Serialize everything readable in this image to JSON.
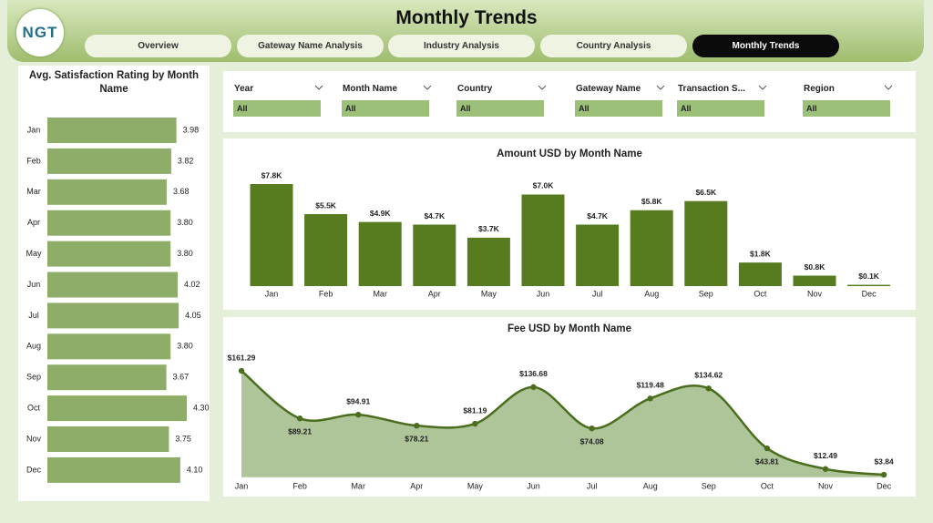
{
  "header": {
    "logo": "NGT",
    "title": "Monthly Trends"
  },
  "tabs": [
    {
      "label": "Overview",
      "active": false
    },
    {
      "label": "Gateway Name Analysis",
      "active": false
    },
    {
      "label": "Industry Analysis",
      "active": false
    },
    {
      "label": "Country Analysis",
      "active": false
    },
    {
      "label": "Monthly Trends",
      "active": true
    }
  ],
  "filters": [
    {
      "label": "Year",
      "value": "All"
    },
    {
      "label": "Month Name",
      "value": "All"
    },
    {
      "label": "Country",
      "value": "All"
    },
    {
      "label": "Gateway Name",
      "value": "All"
    },
    {
      "label": "Transaction S...",
      "value": "All"
    },
    {
      "label": "Region",
      "value": "All"
    }
  ],
  "chart_data": [
    {
      "type": "hbar",
      "title": "Avg. Satisfaction Rating by Month Name",
      "color": "#8dad68",
      "categories": [
        "Jan",
        "Feb",
        "Mar",
        "Apr",
        "May",
        "Jun",
        "Jul",
        "Aug",
        "Sep",
        "Oct",
        "Nov",
        "Dec"
      ],
      "values": [
        3.98,
        3.82,
        3.68,
        3.8,
        3.8,
        4.02,
        4.05,
        3.8,
        3.67,
        4.3,
        3.75,
        4.1
      ],
      "value_labels": [
        "3.98",
        "3.82",
        "3.68",
        "3.80",
        "3.80",
        "4.02",
        "4.05",
        "3.80",
        "3.67",
        "4.30",
        "3.75",
        "4.10"
      ]
    },
    {
      "type": "bar",
      "title": "Amount USD by Month Name",
      "color": "#567c1f",
      "categories": [
        "Jan",
        "Feb",
        "Mar",
        "Apr",
        "May",
        "Jun",
        "Jul",
        "Aug",
        "Sep",
        "Oct",
        "Nov",
        "Dec"
      ],
      "values": [
        7800,
        5500,
        4900,
        4700,
        3700,
        7000,
        4700,
        5800,
        6500,
        1800,
        800,
        100
      ],
      "value_labels": [
        "$7.8K",
        "$5.5K",
        "$4.9K",
        "$4.7K",
        "$3.7K",
        "$7.0K",
        "$4.7K",
        "$5.8K",
        "$6.5K",
        "$1.8K",
        "$0.8K",
        "$0.1K"
      ]
    },
    {
      "type": "area",
      "title": "Fee USD by Month Name",
      "color": "#4a6d1e",
      "categories": [
        "Jan",
        "Feb",
        "Mar",
        "Apr",
        "May",
        "Jun",
        "Jul",
        "Aug",
        "Sep",
        "Oct",
        "Nov",
        "Dec"
      ],
      "values": [
        161.29,
        89.21,
        94.91,
        78.21,
        81.19,
        136.68,
        74.08,
        119.48,
        134.62,
        43.81,
        12.49,
        3.84
      ],
      "value_labels": [
        "$161.29",
        "$89.21",
        "$94.91",
        "$78.21",
        "$81.19",
        "$136.68",
        "$74.08",
        "$119.48",
        "$134.62",
        "$43.81",
        "$12.49",
        "$3.84"
      ]
    }
  ]
}
